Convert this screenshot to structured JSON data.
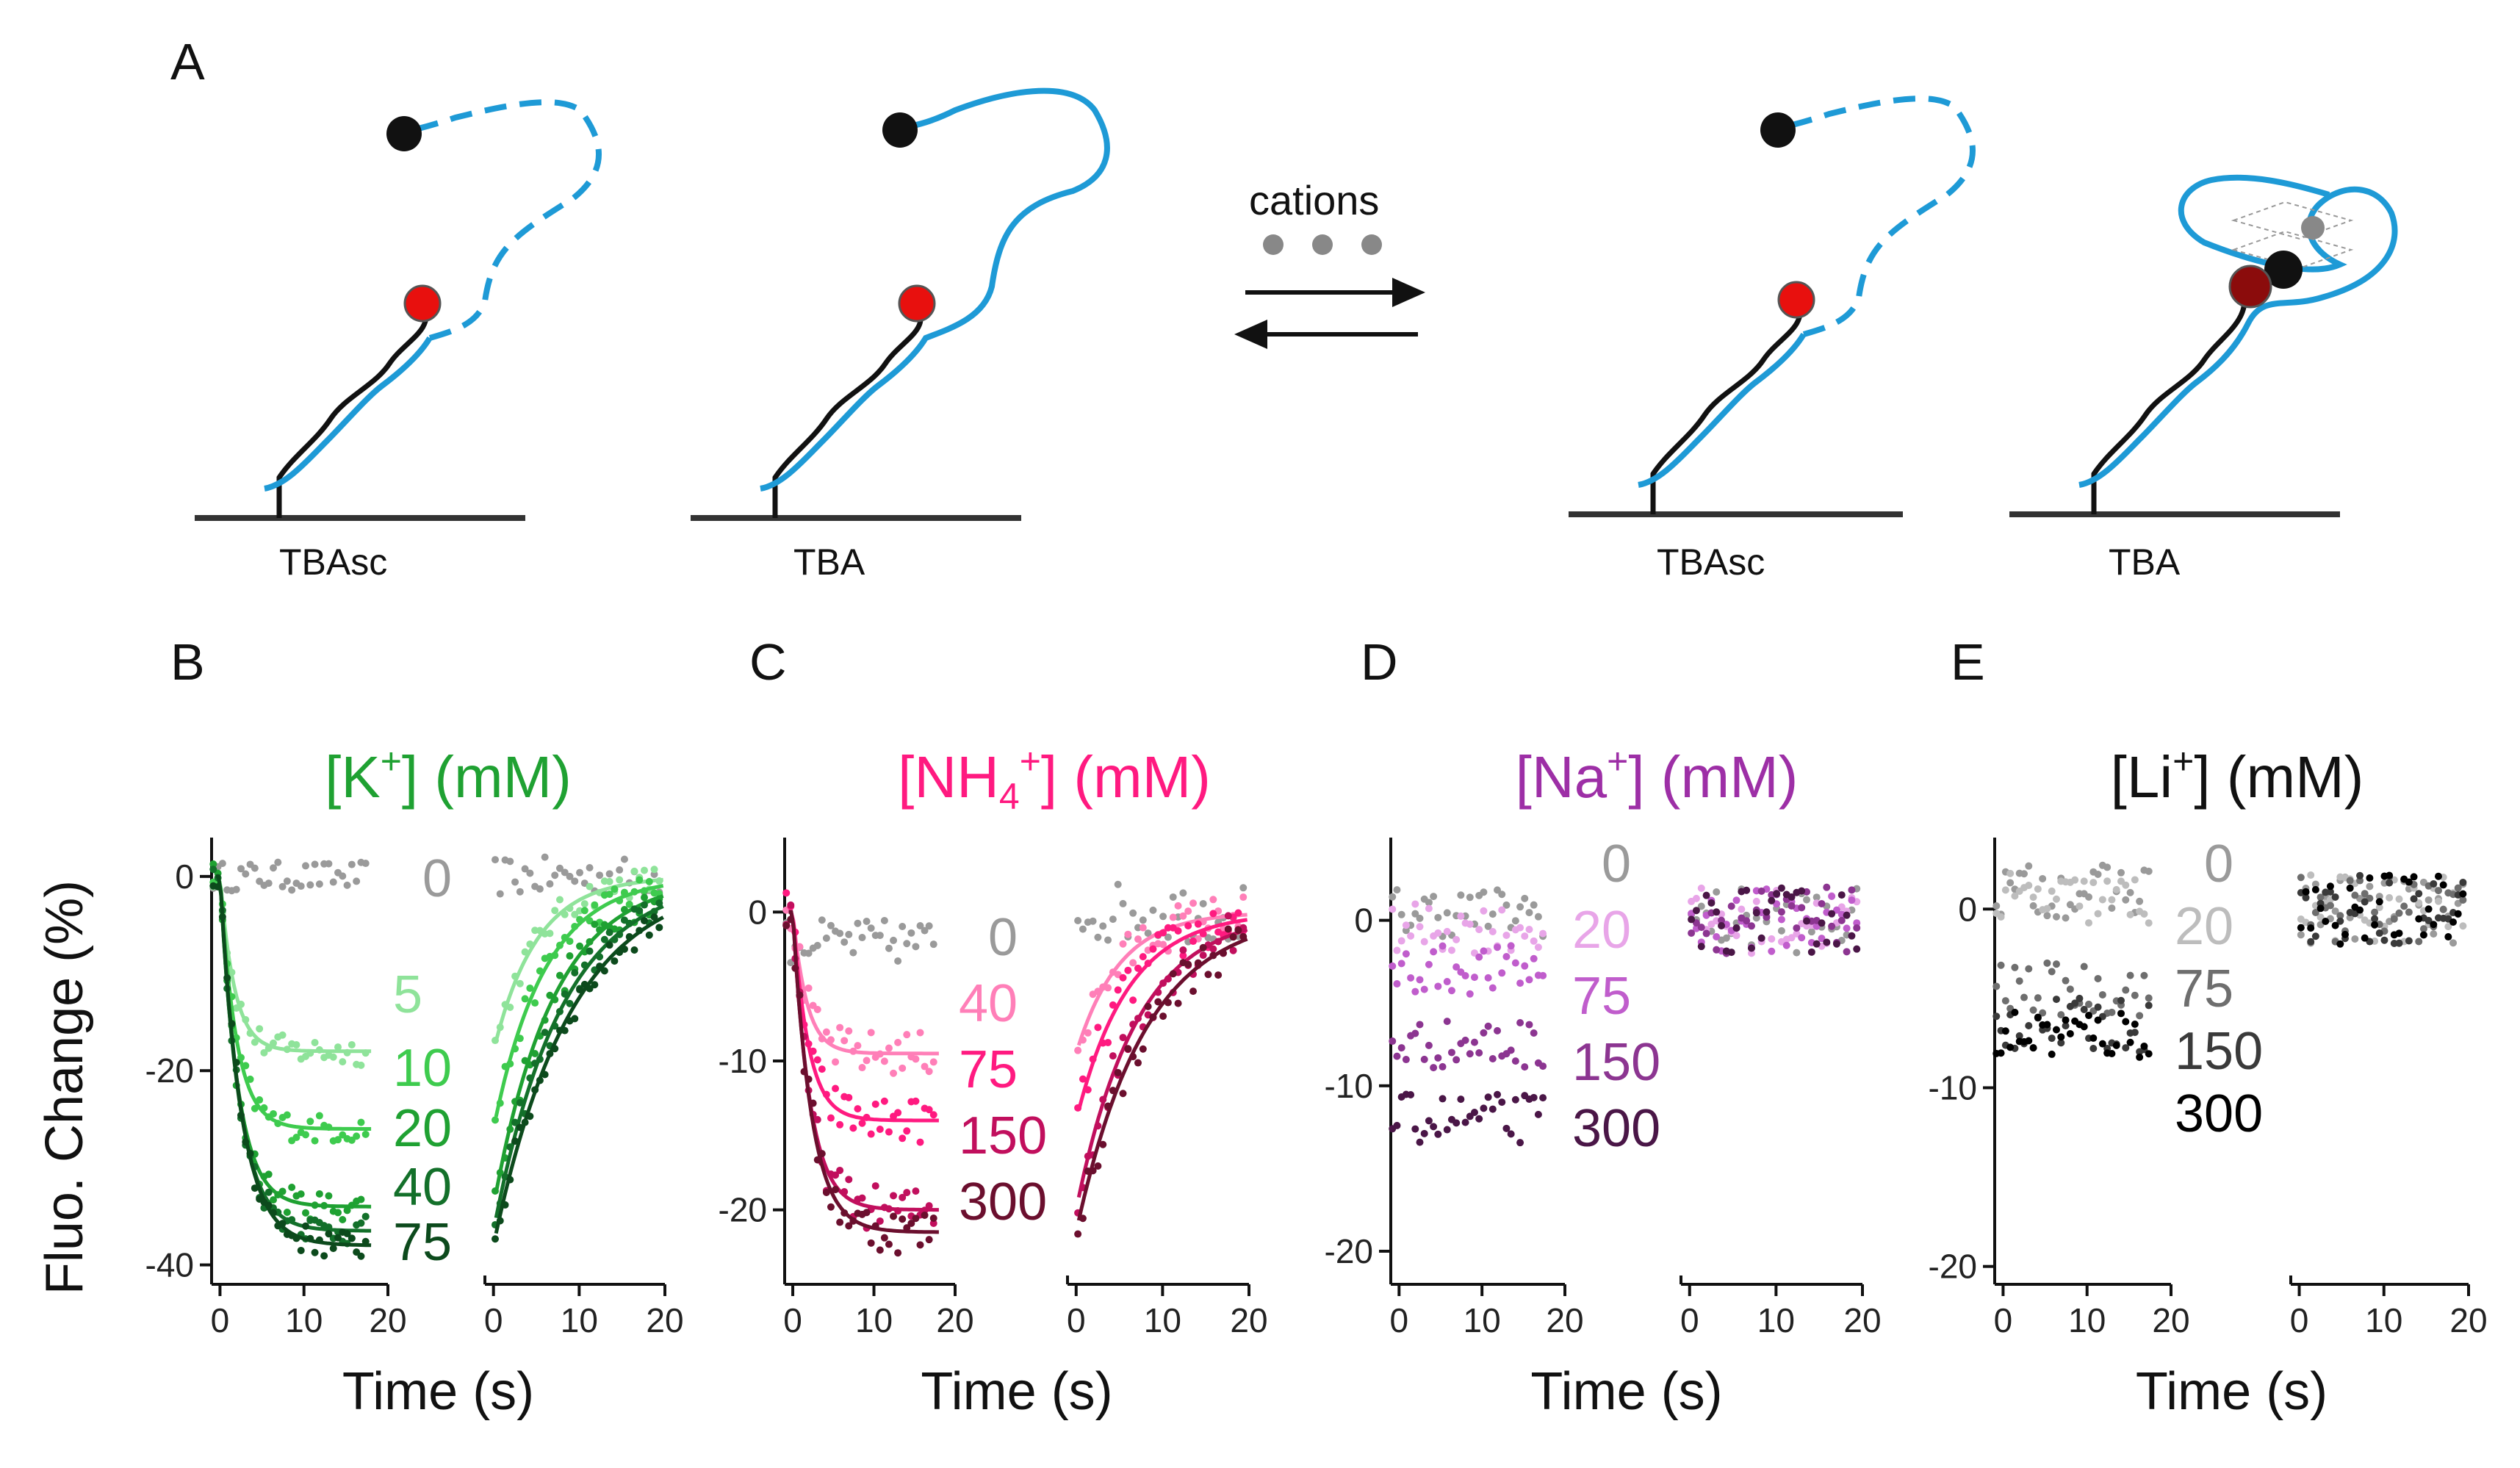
{
  "figure": {
    "panel_A": {
      "letter": "A",
      "labels": [
        "TBAsc",
        "TBA",
        "TBAsc",
        "TBA"
      ],
      "arrow_label": "cations"
    },
    "colors": {
      "dna_blue": "#1e9ad6",
      "dna_black": "#111111",
      "red": "#e8100e",
      "dark_red": "#8b0c0c",
      "grey": "#888888"
    },
    "y_axis_title": "Fluo. Change (%)",
    "x_axis_title": "Time (s)"
  },
  "chart_data": [
    {
      "panel": "B",
      "type": "scatter",
      "title": "[K+] (mM)",
      "title_parts": {
        "pre": "[K",
        "sup": "+",
        "post": "] (mM)"
      },
      "title_color": "#1fa132",
      "xlabel": "Time (s)",
      "ylabel": "Fluo. Change (%)",
      "xlim": [
        -1,
        20
      ],
      "ylim": [
        -42,
        4
      ],
      "yticks": [
        0,
        -20,
        -40
      ],
      "xticks": [
        0,
        10,
        20
      ],
      "series": [
        {
          "name": "0",
          "color": "#9a9a9a",
          "plateau": 0,
          "fit": false
        },
        {
          "name": "5",
          "color": "#8fe39a",
          "plateau": -18,
          "fit": true
        },
        {
          "name": "10",
          "color": "#3ecb4e",
          "plateau": -26,
          "fit": true
        },
        {
          "name": "20",
          "color": "#1fa132",
          "plateau": -34,
          "fit": true
        },
        {
          "name": "40",
          "color": "#13702a",
          "plateau": -36.5,
          "fit": true
        },
        {
          "name": "75",
          "color": "#0c4a1c",
          "plateau": -38,
          "fit": true
        }
      ]
    },
    {
      "panel": "C",
      "type": "scatter",
      "title": "[NH4+] (mM)",
      "title_parts": {
        "pre": "[NH",
        "sub": "4",
        "sup": "+",
        "post": "] (mM)"
      },
      "title_color": "#ff1a80",
      "xlabel": "Time (s)",
      "ylabel": "",
      "xlim": [
        -1,
        20
      ],
      "ylim": [
        -25,
        5
      ],
      "yticks": [
        0,
        -10,
        -20
      ],
      "xticks": [
        0,
        10,
        20
      ],
      "series": [
        {
          "name": "0",
          "color": "#9a9a9a",
          "plateau": -2,
          "fit": false
        },
        {
          "name": "40",
          "color": "#ff7fb8",
          "plateau": -9.5,
          "fit": true
        },
        {
          "name": "75",
          "color": "#ff1a80",
          "plateau": -14,
          "fit": true
        },
        {
          "name": "150",
          "color": "#c10f5d",
          "plateau": -20,
          "fit": true
        },
        {
          "name": "300",
          "color": "#6b0f2e",
          "plateau": -21.5,
          "fit": true
        }
      ]
    },
    {
      "panel": "D",
      "type": "scatter",
      "title": "[Na+] (mM)",
      "title_parts": {
        "pre": "[Na",
        "sup": "+",
        "post": "] (mM)"
      },
      "title_color": "#9d2fa6",
      "xlabel": "Time (s)",
      "ylabel": "",
      "xlim": [
        -1,
        20
      ],
      "ylim": [
        -22,
        5
      ],
      "yticks": [
        0,
        -10,
        -20
      ],
      "xticks": [
        0,
        10,
        20
      ],
      "series": [
        {
          "name": "0",
          "color": "#9a9a9a",
          "plateau": 0.5,
          "fit": false
        },
        {
          "name": "20",
          "color": "#e8a5e8",
          "plateau": -0.5,
          "fit": false
        },
        {
          "name": "75",
          "color": "#c05dcc",
          "plateau": -3,
          "fit": false
        },
        {
          "name": "150",
          "color": "#8c3591",
          "plateau": -7.5,
          "fit": false
        },
        {
          "name": "300",
          "color": "#4a1647",
          "plateau": -12,
          "fit": false
        }
      ]
    },
    {
      "panel": "E",
      "type": "scatter",
      "title": "[Li+] (mM)",
      "title_parts": {
        "pre": "[Li",
        "sup": "+",
        "post": "] (mM)"
      },
      "title_color": "#111111",
      "xlabel": "Time (s)",
      "ylabel": "",
      "xlim": [
        -1,
        20
      ],
      "ylim": [
        -21,
        4
      ],
      "yticks": [
        0,
        -10,
        -20
      ],
      "xticks": [
        0,
        10,
        20
      ],
      "series": [
        {
          "name": "0",
          "color": "#9a9a9a",
          "plateau": 1,
          "fit": false
        },
        {
          "name": "20",
          "color": "#bdbdbd",
          "plateau": 0.5,
          "fit": false
        },
        {
          "name": "75",
          "color": "#6e6e6e",
          "plateau": -4.5,
          "fit": false
        },
        {
          "name": "150",
          "color": "#3a3a3a",
          "plateau": -6.5,
          "fit": false
        },
        {
          "name": "300",
          "color": "#000000",
          "plateau": -7,
          "fit": false
        }
      ]
    }
  ]
}
